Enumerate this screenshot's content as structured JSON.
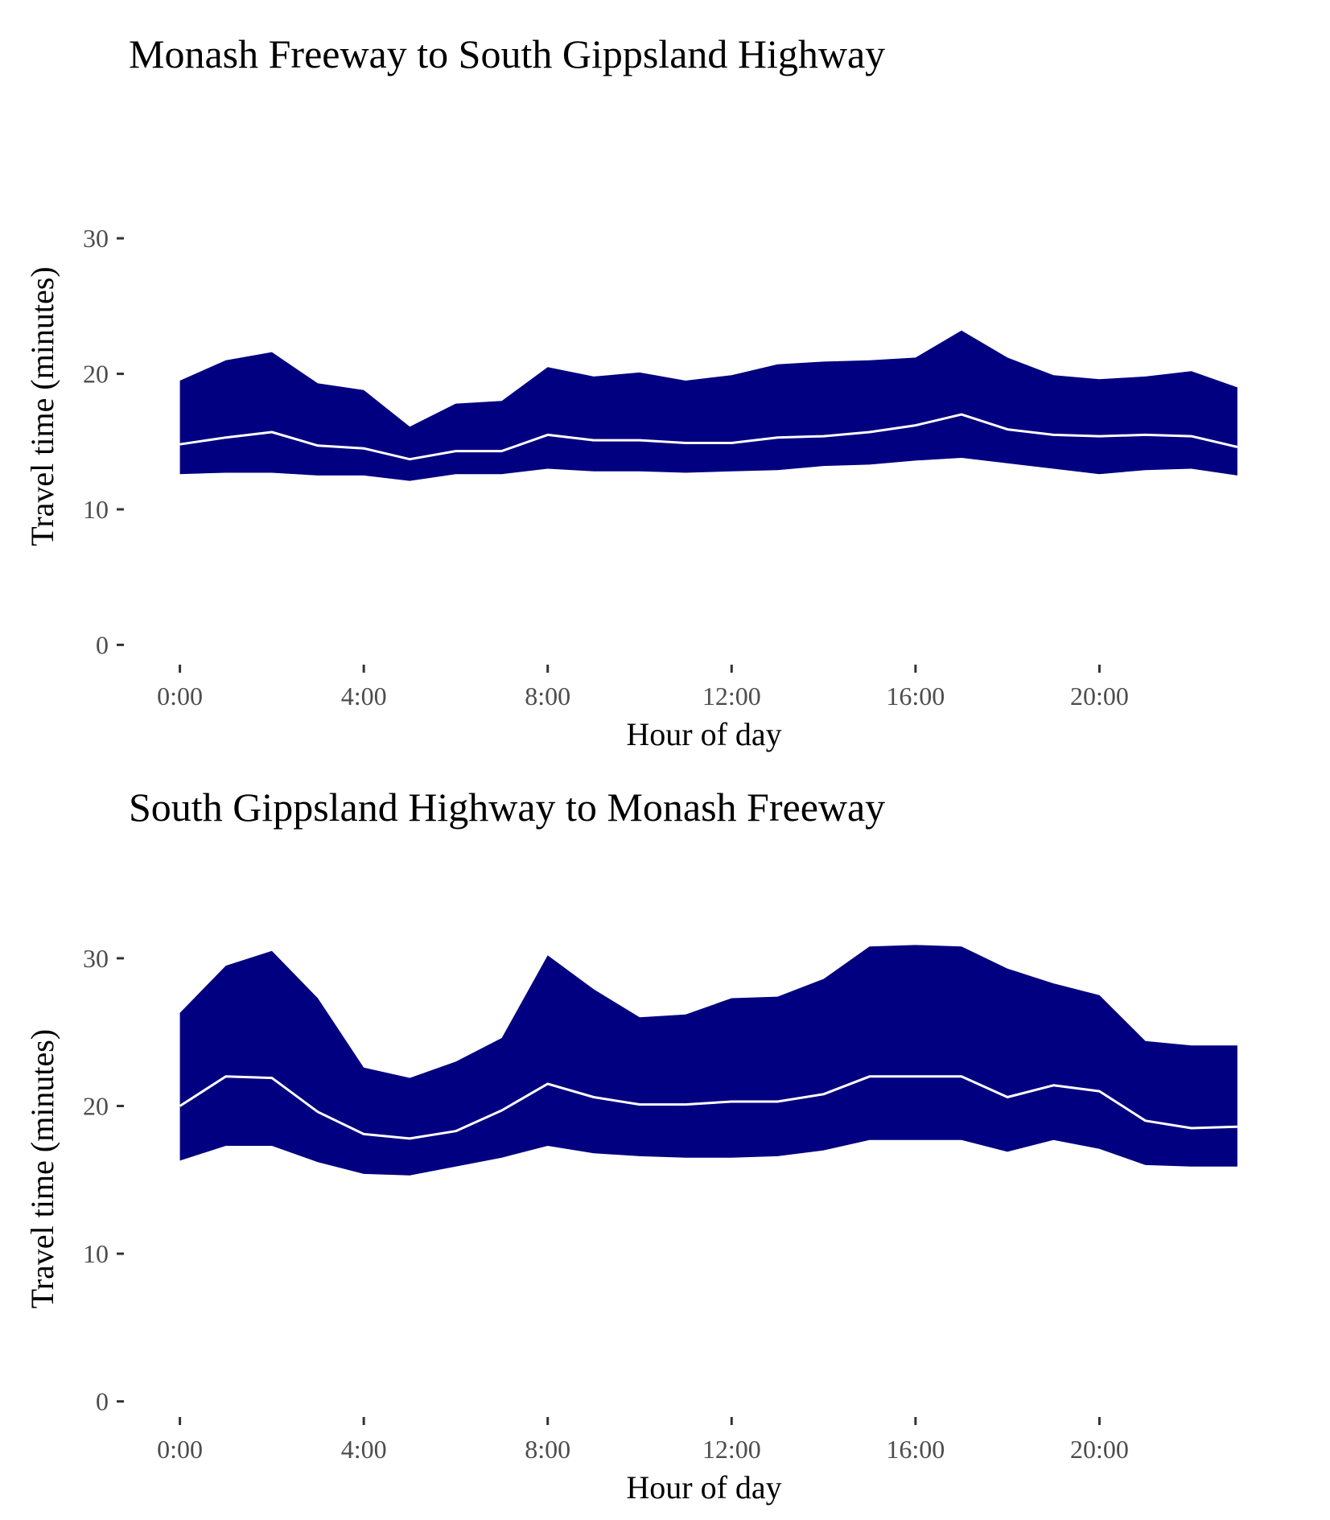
{
  "chart_data": [
    {
      "type": "area",
      "title": "Monash Freeway to South Gippsland Highway",
      "xlabel": "Hour of day",
      "ylabel": "Travel time (minutes)",
      "x": [
        0,
        1,
        2,
        3,
        4,
        5,
        6,
        7,
        8,
        9,
        10,
        11,
        12,
        13,
        14,
        15,
        16,
        17,
        18,
        19,
        20,
        21,
        22,
        23
      ],
      "x_ticks": [
        {
          "value": 0,
          "label": "0:00"
        },
        {
          "value": 4,
          "label": "4:00"
        },
        {
          "value": 8,
          "label": "8:00"
        },
        {
          "value": 12,
          "label": "12:00"
        },
        {
          "value": 16,
          "label": "16:00"
        },
        {
          "value": 20,
          "label": "20:00"
        }
      ],
      "xlim": [
        -1.2,
        24
      ],
      "ylim": [
        -1.4,
        36.6
      ],
      "y_ticks": [
        0,
        10,
        20,
        30
      ],
      "grid": false,
      "band_color": "#000080",
      "line_color": "#ffffff",
      "upper": [
        19.5,
        21.0,
        21.6,
        19.3,
        18.8,
        16.1,
        17.8,
        18.0,
        20.5,
        19.8,
        20.1,
        19.5,
        19.9,
        20.7,
        20.9,
        21.0,
        21.2,
        23.2,
        21.2,
        19.9,
        19.6,
        19.8,
        20.2,
        19.0
      ],
      "median": [
        14.8,
        15.3,
        15.7,
        14.7,
        14.5,
        13.7,
        14.3,
        14.3,
        15.5,
        15.1,
        15.1,
        14.9,
        14.9,
        15.3,
        15.4,
        15.7,
        16.2,
        17.0,
        15.9,
        15.5,
        15.4,
        15.5,
        15.4,
        14.6
      ],
      "lower": [
        12.6,
        12.7,
        12.7,
        12.5,
        12.5,
        12.1,
        12.6,
        12.6,
        13.0,
        12.8,
        12.8,
        12.7,
        12.8,
        12.9,
        13.2,
        13.3,
        13.6,
        13.8,
        13.4,
        13.0,
        12.6,
        12.9,
        13.0,
        12.5
      ]
    },
    {
      "type": "area",
      "title": "South Gippsland Highway to Monash Freeway",
      "xlabel": "Hour of day",
      "ylabel": "Travel time (minutes)",
      "x": [
        0,
        1,
        2,
        3,
        4,
        5,
        6,
        7,
        8,
        9,
        10,
        11,
        12,
        13,
        14,
        15,
        16,
        17,
        18,
        19,
        20,
        21,
        22,
        23
      ],
      "x_ticks": [
        {
          "value": 0,
          "label": "0:00"
        },
        {
          "value": 4,
          "label": "4:00"
        },
        {
          "value": 8,
          "label": "8:00"
        },
        {
          "value": 12,
          "label": "12:00"
        },
        {
          "value": 16,
          "label": "16:00"
        },
        {
          "value": 20,
          "label": "20:00"
        }
      ],
      "xlim": [
        -1.2,
        24
      ],
      "ylim": [
        -1.0,
        32.5
      ],
      "y_ticks": [
        0,
        10,
        20,
        30
      ],
      "grid": false,
      "band_color": "#000080",
      "line_color": "#ffffff",
      "upper": [
        26.3,
        29.5,
        30.5,
        27.3,
        22.6,
        21.9,
        23.0,
        24.6,
        30.2,
        27.9,
        26.0,
        26.2,
        27.3,
        27.4,
        28.6,
        30.8,
        30.9,
        30.8,
        29.3,
        28.3,
        27.5,
        24.4,
        24.1,
        24.1
      ],
      "median": [
        20.0,
        22.0,
        21.9,
        19.6,
        18.1,
        17.8,
        18.3,
        19.7,
        21.5,
        20.6,
        20.1,
        20.1,
        20.3,
        20.3,
        20.8,
        22.0,
        22.0,
        22.0,
        20.6,
        21.4,
        21.0,
        19.0,
        18.5,
        18.6
      ],
      "lower": [
        16.3,
        17.3,
        17.3,
        16.2,
        15.4,
        15.3,
        15.9,
        16.5,
        17.3,
        16.8,
        16.6,
        16.5,
        16.5,
        16.6,
        17.0,
        17.7,
        17.7,
        17.7,
        16.9,
        17.7,
        17.1,
        16.0,
        15.9,
        15.9
      ]
    }
  ]
}
